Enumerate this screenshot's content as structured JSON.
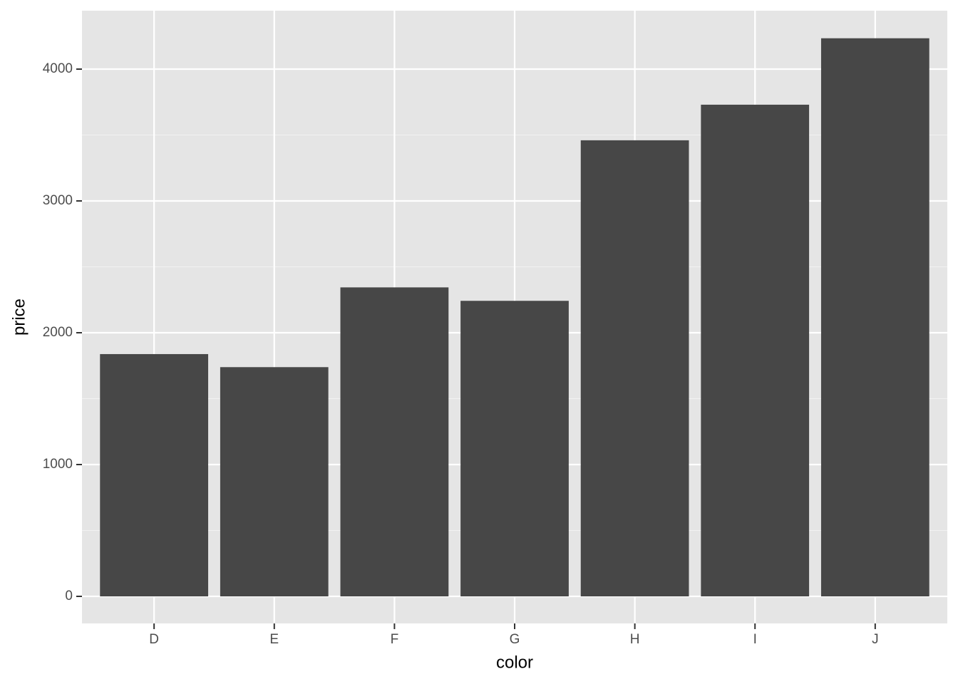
{
  "chart_data": {
    "type": "bar",
    "x_label": "color",
    "y_label": "price",
    "categories": [
      "D",
      "E",
      "F",
      "G",
      "H",
      "I",
      "J"
    ],
    "values": [
      1838,
      1739,
      2344,
      2242,
      3460,
      3730,
      4234
    ],
    "color": "#474747",
    "ylim": [
      -205.4,
      4443.2
    ],
    "yticks": [
      0,
      1000,
      2000,
      3000,
      4000
    ],
    "minor_yticks": [
      500,
      1500,
      2500,
      3500
    ],
    "grid": true
  }
}
